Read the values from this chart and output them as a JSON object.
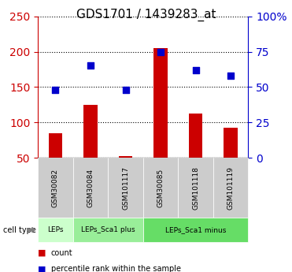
{
  "title": "GDS1701 / 1439283_at",
  "samples": [
    "GSM30082",
    "GSM30084",
    "GSM101117",
    "GSM30085",
    "GSM101118",
    "GSM101119"
  ],
  "count_values": [
    85,
    125,
    52,
    205,
    113,
    92
  ],
  "percentile_values": [
    48,
    65,
    48,
    75,
    62,
    58
  ],
  "ylim_left": [
    50,
    250
  ],
  "ylim_right": [
    0,
    100
  ],
  "left_ticks": [
    50,
    100,
    150,
    200,
    250
  ],
  "right_ticks": [
    0,
    25,
    50,
    75,
    100
  ],
  "right_tick_labels": [
    "0",
    "25",
    "50",
    "75",
    "100%"
  ],
  "bar_color": "#cc0000",
  "dot_color": "#0000cc",
  "cell_type_label": "cell type",
  "groups": [
    {
      "label": "LEPs",
      "start": 0,
      "end": 1,
      "color": "#ccffcc"
    },
    {
      "label": "LEPs_Sca1 plus",
      "start": 1,
      "end": 3,
      "color": "#99ee99"
    },
    {
      "label": "LEPs_Sca1 minus",
      "start": 3,
      "end": 6,
      "color": "#66dd66"
    }
  ],
  "grid_color": "#000000",
  "sample_box_color": "#cccccc",
  "left_axis_color": "#cc0000",
  "right_axis_color": "#0000cc"
}
